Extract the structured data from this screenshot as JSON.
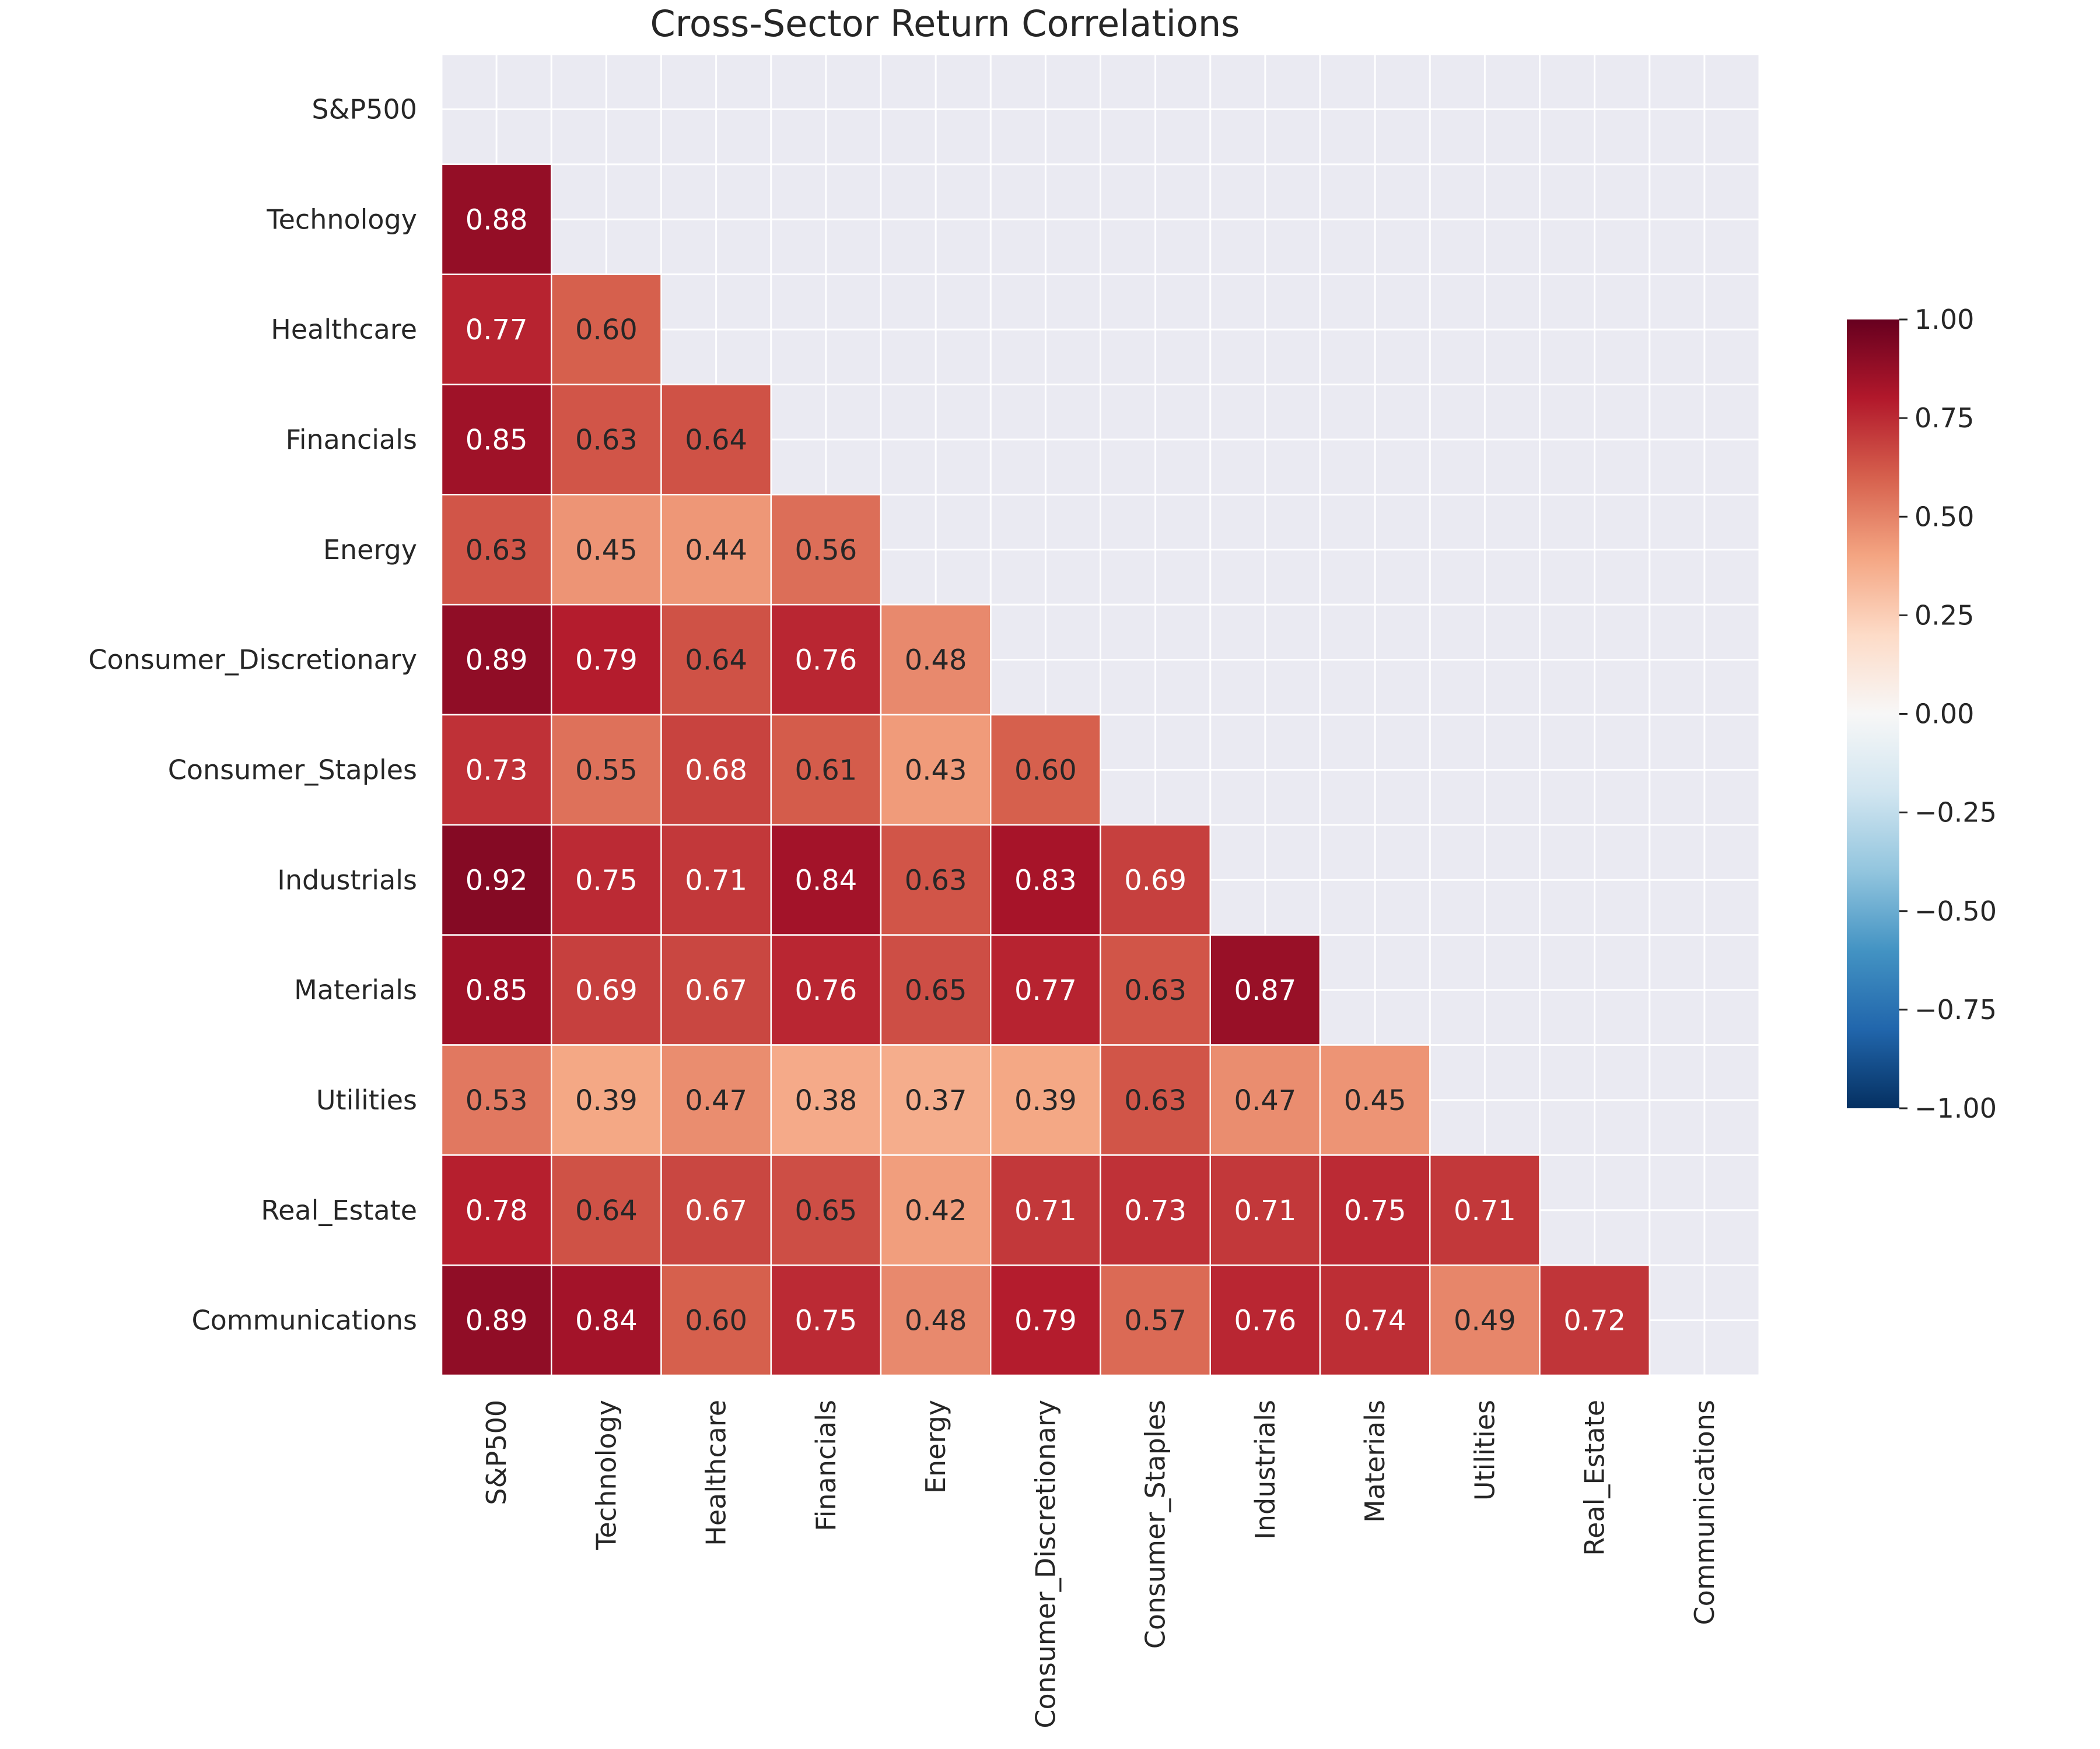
{
  "chart_data": {
    "type": "heatmap",
    "title": "Cross-Sector Return Correlations",
    "labels": [
      "S&P500",
      "Technology",
      "Healthcare",
      "Financials",
      "Energy",
      "Consumer_Discretionary",
      "Consumer_Staples",
      "Industrials",
      "Materials",
      "Utilities",
      "Real_Estate",
      "Communications"
    ],
    "mask": "upper triangle including diagonal",
    "matrix": [
      [
        null,
        null,
        null,
        null,
        null,
        null,
        null,
        null,
        null,
        null,
        null,
        null
      ],
      [
        0.88,
        null,
        null,
        null,
        null,
        null,
        null,
        null,
        null,
        null,
        null,
        null
      ],
      [
        0.77,
        0.6,
        null,
        null,
        null,
        null,
        null,
        null,
        null,
        null,
        null,
        null
      ],
      [
        0.85,
        0.63,
        0.64,
        null,
        null,
        null,
        null,
        null,
        null,
        null,
        null,
        null
      ],
      [
        0.63,
        0.45,
        0.44,
        0.56,
        null,
        null,
        null,
        null,
        null,
        null,
        null,
        null
      ],
      [
        0.89,
        0.79,
        0.64,
        0.76,
        0.48,
        null,
        null,
        null,
        null,
        null,
        null,
        null
      ],
      [
        0.73,
        0.55,
        0.68,
        0.61,
        0.43,
        0.6,
        null,
        null,
        null,
        null,
        null,
        null
      ],
      [
        0.92,
        0.75,
        0.71,
        0.84,
        0.63,
        0.83,
        0.69,
        null,
        null,
        null,
        null,
        null
      ],
      [
        0.85,
        0.69,
        0.67,
        0.76,
        0.65,
        0.77,
        0.63,
        0.87,
        null,
        null,
        null,
        null
      ],
      [
        0.53,
        0.39,
        0.47,
        0.38,
        0.37,
        0.39,
        0.63,
        0.47,
        0.45,
        null,
        null,
        null
      ],
      [
        0.78,
        0.64,
        0.67,
        0.65,
        0.42,
        0.71,
        0.73,
        0.71,
        0.75,
        0.71,
        null,
        null
      ],
      [
        0.89,
        0.84,
        0.6,
        0.75,
        0.48,
        0.79,
        0.57,
        0.76,
        0.74,
        0.49,
        0.72,
        null
      ]
    ],
    "value_format": "0.00",
    "colormap": "RdBu_r",
    "vmin": -1.0,
    "vmax": 1.0,
    "colorbar_ticks": [
      "1.00",
      "0.75",
      "0.50",
      "0.25",
      "0.00",
      "−0.25",
      "−0.50",
      "−0.75",
      "−1.00"
    ],
    "grid": true,
    "colors": {
      "background": "#eaeaf2",
      "grid_line": "#ffffff",
      "text_dark": "#262626",
      "text_light": "#ffffff"
    }
  }
}
